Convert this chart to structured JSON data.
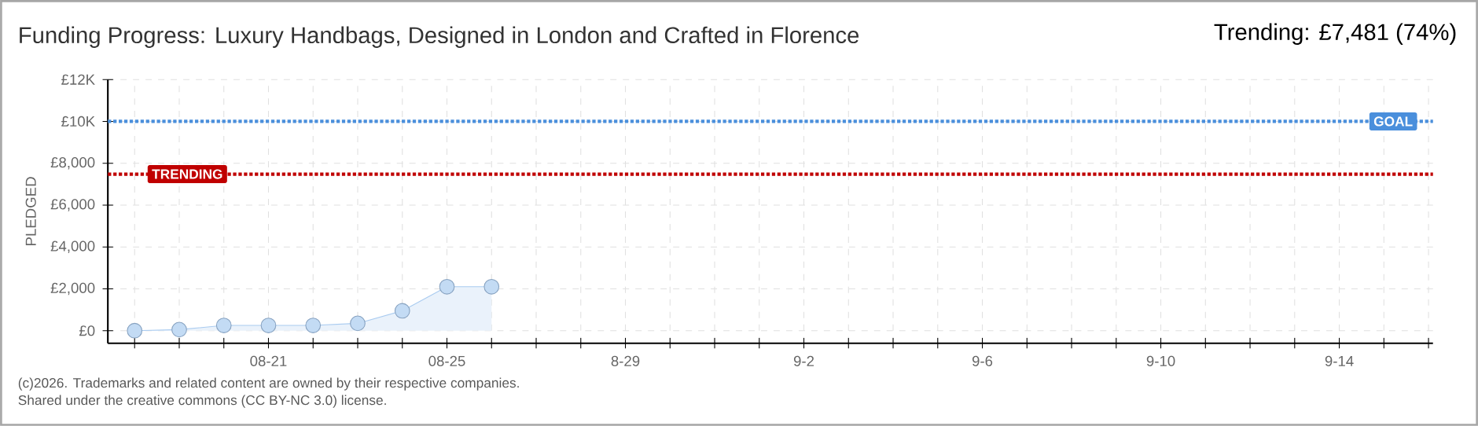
{
  "chart_data": {
    "type": "area",
    "title": "Funding Progress: Luxury Handbags, Designed in London and Crafted in Florence",
    "subtitle": "Trending:  £7,481 (74%)",
    "ylabel": "PLEDGED",
    "categories": [
      null,
      null,
      null,
      "08-21",
      null,
      null,
      null,
      "08-25",
      null,
      null,
      null,
      "8-29",
      null,
      null,
      null,
      "9-2",
      null,
      null,
      null,
      "9-6",
      null,
      null,
      null,
      "9-10",
      null,
      null,
      null,
      "9-14",
      null,
      null
    ],
    "series": [
      {
        "color": "#a9cbf0",
        "values": [
          0,
          50,
          250,
          250,
          250,
          350,
          950,
          2100,
          2100,
          null,
          null,
          null,
          null,
          null,
          null,
          null,
          null,
          null,
          null,
          null,
          null,
          null,
          null,
          null,
          null,
          null,
          null,
          null,
          null,
          null
        ]
      }
    ],
    "ylim": [
      -600,
      12000
    ],
    "yticks": [
      {
        "value": 0,
        "label": "£0"
      },
      {
        "value": 2000,
        "label": "£2,000"
      },
      {
        "value": 4000,
        "label": "£4,000"
      },
      {
        "value": 6000,
        "label": "£6,000"
      },
      {
        "value": 8000,
        "label": "£8,000"
      },
      {
        "value": 10000,
        "label": "£10K"
      },
      {
        "value": 12000,
        "label": "£12K"
      }
    ],
    "ref_lines": [
      {
        "axis": "y",
        "value": 10000,
        "label": "GOAL",
        "color": "#4a8fdc",
        "line_style": "dotted"
      },
      {
        "axis": "y",
        "value": 7481,
        "label": "TRENDING",
        "color": "#c00000",
        "line_style": "dotted"
      }
    ],
    "grid": true,
    "marker": "circle",
    "annotations": [
      "(c)2026. Trademarks and related content are owned by their respective companies.",
      "Shared under the creative commons (CC BY-NC 3.0) license."
    ]
  }
}
